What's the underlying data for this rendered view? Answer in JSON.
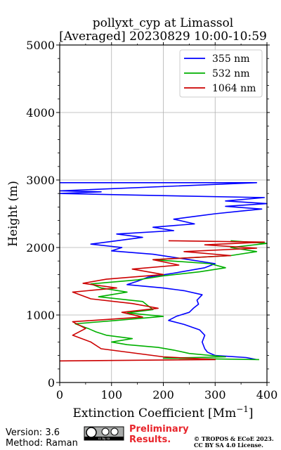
{
  "chart_data": {
    "type": "line",
    "title": [
      "pollyxt_cyp at Limassol",
      "[Averaged] 20230829 10:00-10:59"
    ],
    "xlabel": "Extinction Coefficient [Mm",
    "xlabel_unit_sup": "−1",
    "xlabel_close": "]",
    "ylabel": "Height (m)",
    "xlim": [
      0,
      400
    ],
    "ylim": [
      0,
      5000
    ],
    "xticks": [
      0,
      100,
      200,
      300,
      400
    ],
    "yticks": [
      0,
      1000,
      2000,
      3000,
      4000,
      5000
    ],
    "grid": true,
    "legend_position": "top-right",
    "series": [
      {
        "name": "355 nm",
        "color": "#0000ff",
        "points": [
          [
            380,
            340
          ],
          [
            360,
            370
          ],
          [
            300,
            400
          ],
          [
            285,
            450
          ],
          [
            280,
            500
          ],
          [
            275,
            600
          ],
          [
            280,
            700
          ],
          [
            270,
            780
          ],
          [
            240,
            860
          ],
          [
            210,
            920
          ],
          [
            225,
            980
          ],
          [
            250,
            1040
          ],
          [
            258,
            1100
          ],
          [
            268,
            1160
          ],
          [
            265,
            1220
          ],
          [
            275,
            1300
          ],
          [
            240,
            1360
          ],
          [
            200,
            1400
          ],
          [
            130,
            1450
          ],
          [
            150,
            1500
          ],
          [
            170,
            1560
          ],
          [
            220,
            1620
          ],
          [
            280,
            1700
          ],
          [
            300,
            1760
          ],
          [
            250,
            1820
          ],
          [
            180,
            1900
          ],
          [
            100,
            1950
          ],
          [
            120,
            2000
          ],
          [
            60,
            2050
          ],
          [
            110,
            2100
          ],
          [
            160,
            2150
          ],
          [
            110,
            2200
          ],
          [
            220,
            2250
          ],
          [
            180,
            2300
          ],
          [
            260,
            2350
          ],
          [
            220,
            2420
          ],
          [
            260,
            2460
          ],
          [
            300,
            2500
          ],
          [
            350,
            2540
          ],
          [
            390,
            2570
          ],
          [
            320,
            2610
          ],
          [
            400,
            2650
          ],
          [
            320,
            2690
          ],
          [
            395,
            2740
          ],
          [
            120,
            2780
          ],
          [
            0,
            2800
          ],
          [
            80,
            2825
          ],
          [
            0,
            2840
          ],
          [
            380,
            2960
          ],
          [
            0,
            2960
          ]
        ]
      },
      {
        "name": "532 nm",
        "color": "#00b000",
        "points": [
          [
            385,
            340
          ],
          [
            200,
            360
          ],
          [
            320,
            380
          ],
          [
            250,
            430
          ],
          [
            220,
            480
          ],
          [
            190,
            520
          ],
          [
            130,
            560
          ],
          [
            100,
            600
          ],
          [
            140,
            650
          ],
          [
            90,
            700
          ],
          [
            70,
            750
          ],
          [
            55,
            800
          ],
          [
            30,
            870
          ],
          [
            110,
            920
          ],
          [
            200,
            980
          ],
          [
            130,
            1030
          ],
          [
            180,
            1080
          ],
          [
            170,
            1140
          ],
          [
            160,
            1200
          ],
          [
            75,
            1270
          ],
          [
            130,
            1340
          ],
          [
            80,
            1400
          ],
          [
            60,
            1460
          ],
          [
            150,
            1520
          ],
          [
            200,
            1580
          ],
          [
            270,
            1640
          ],
          [
            320,
            1700
          ],
          [
            290,
            1760
          ],
          [
            180,
            1820
          ],
          [
            330,
            1880
          ],
          [
            380,
            1940
          ],
          [
            330,
            2000
          ],
          [
            400,
            2060
          ],
          [
            330,
            2100
          ]
        ]
      },
      {
        "name": "1064 nm",
        "color": "#cc0000",
        "points": [
          [
            0,
            320
          ],
          [
            300,
            340
          ],
          [
            200,
            380
          ],
          [
            80,
            500
          ],
          [
            60,
            600
          ],
          [
            25,
            700
          ],
          [
            50,
            800
          ],
          [
            25,
            900
          ],
          [
            160,
            970
          ],
          [
            120,
            1040
          ],
          [
            190,
            1100
          ],
          [
            140,
            1170
          ],
          [
            60,
            1240
          ],
          [
            25,
            1340
          ],
          [
            110,
            1400
          ],
          [
            45,
            1470
          ],
          [
            90,
            1530
          ],
          [
            200,
            1600
          ],
          [
            140,
            1680
          ],
          [
            230,
            1740
          ],
          [
            180,
            1820
          ],
          [
            330,
            1880
          ],
          [
            240,
            1940
          ],
          [
            380,
            1990
          ],
          [
            280,
            2040
          ],
          [
            395,
            2080
          ],
          [
            210,
            2100
          ]
        ]
      }
    ]
  },
  "footer": {
    "version": "Version: 3.6",
    "method": "Method: Raman",
    "badge": "cc by sa",
    "preliminary_line1": "Preliminary",
    "preliminary_line2": "Results.",
    "copyright_line1": "© TROPOS & ECoE 2023.",
    "copyright_line2": "CC BY SA 4.0 License."
  }
}
